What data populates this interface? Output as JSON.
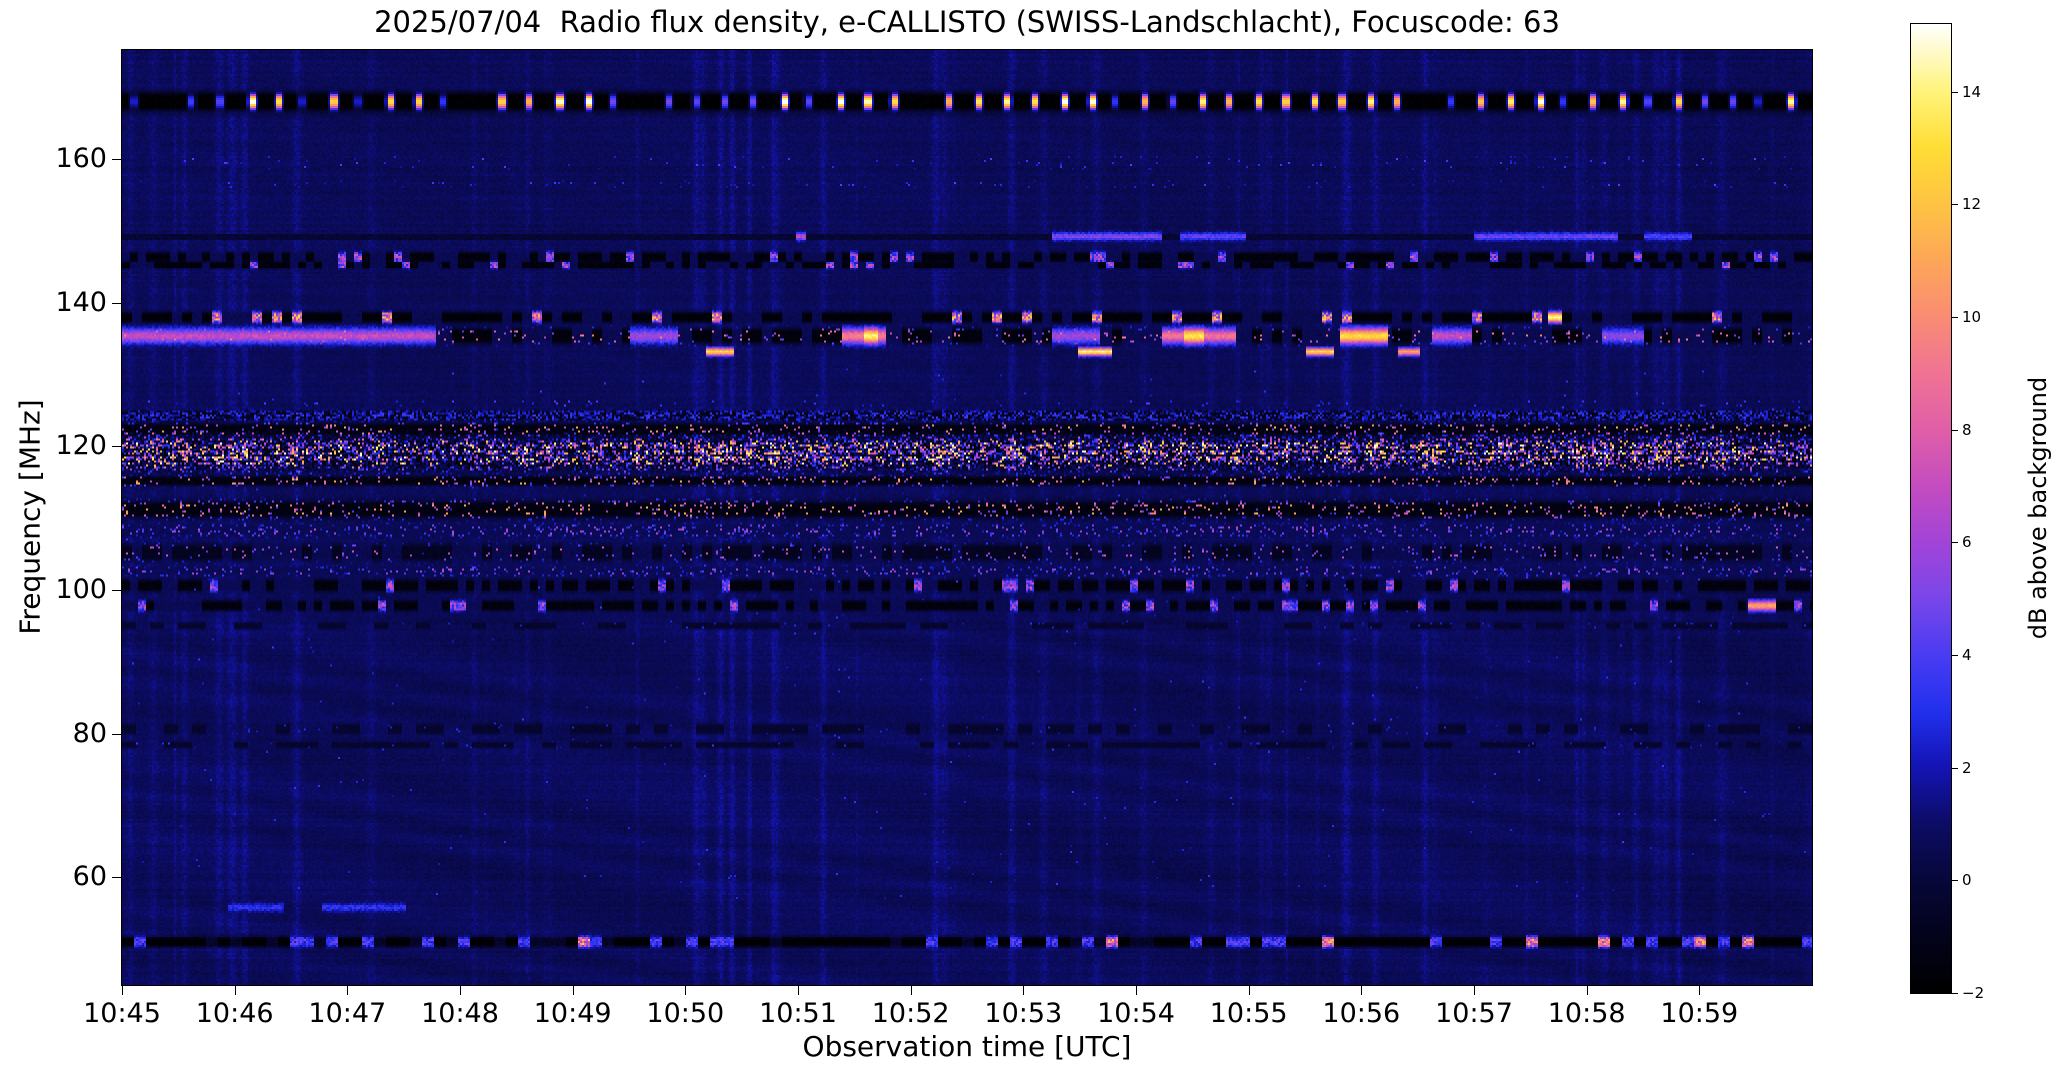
{
  "title": "2025/07/04  Radio flux density, e-CALLISTO (SWISS-Landschlacht), Focuscode: 63",
  "chart_data": {
    "type": "heatmap",
    "title": "2025/07/04  Radio flux density, e-CALLISTO (SWISS-Landschlacht), Focuscode: 63",
    "xlabel": "Observation time [UTC]",
    "ylabel": "Frequency [MHz]",
    "x_tick_labels": [
      "10:45",
      "10:46",
      "10:47",
      "10:48",
      "10:49",
      "10:50",
      "10:51",
      "10:52",
      "10:53",
      "10:54",
      "10:55",
      "10:56",
      "10:57",
      "10:58",
      "10:59"
    ],
    "x_minutes_span": 15,
    "y_ticks": [
      160,
      140,
      120,
      100,
      80,
      60
    ],
    "freq_range": [
      45,
      175.2
    ],
    "value_range": [
      -2,
      15.2
    ],
    "grid": false,
    "colorbar": {
      "label": "dB above background",
      "ticks": [
        14,
        12,
        10,
        8,
        6,
        4,
        2,
        0,
        -2
      ],
      "tick_labels": [
        "14",
        "12",
        "10",
        "8",
        "6",
        "4",
        "2",
        "0",
        "−2"
      ]
    },
    "colormap": [
      [
        -2,
        "#000000"
      ],
      [
        -1,
        "#03031c"
      ],
      [
        0,
        "#07073a"
      ],
      [
        1,
        "#0c0c66"
      ],
      [
        2,
        "#1414b4"
      ],
      [
        3,
        "#2230ee"
      ],
      [
        4,
        "#4a3cf2"
      ],
      [
        5,
        "#7a46ea"
      ],
      [
        6,
        "#a244d8"
      ],
      [
        7,
        "#c44cc0"
      ],
      [
        8,
        "#e05fa8"
      ],
      [
        9,
        "#f07394"
      ],
      [
        10,
        "#f98c74"
      ],
      [
        11,
        "#fda658"
      ],
      [
        12,
        "#fec343"
      ],
      [
        13,
        "#ffdd35"
      ],
      [
        14,
        "#fff37a"
      ],
      [
        15.2,
        "#ffffff"
      ]
    ],
    "background_level_db": 0.6,
    "rfi_bands": [
      {
        "freq": 168.0,
        "width": 3.0,
        "type": "bright_dashed"
      },
      {
        "freq": 159.5,
        "width": 2.0,
        "type": "faint_speckle"
      },
      {
        "freq": 156.5,
        "width": 1.0,
        "type": "faint_speckle"
      },
      {
        "freq": 149.2,
        "width": 1.3,
        "type": "intermittent_streak",
        "segments": [
          [
            0.398,
            0.404,
            6.5
          ],
          [
            0.55,
            0.615,
            5.2
          ],
          [
            0.625,
            0.665,
            4.4
          ],
          [
            0.8,
            0.885,
            4.6
          ],
          [
            0.9,
            0.928,
            4.0
          ]
        ]
      },
      {
        "freq": 146.3,
        "width": 1.6,
        "type": "dark_dotted"
      },
      {
        "freq": 145.2,
        "width": 1.0,
        "type": "dark_dotted"
      },
      {
        "freq": 138.0,
        "width": 1.6,
        "type": "dark_dashed_bright",
        "segments": [
          [
            0.843,
            0.852,
            14.5
          ]
        ]
      },
      {
        "freq": 135.4,
        "width": 2.4,
        "type": "pink_streaks",
        "segments": [
          [
            0.0,
            0.185,
            7.0
          ],
          [
            0.3,
            0.328,
            6.0
          ],
          [
            0.425,
            0.452,
            9.5
          ],
          [
            0.438,
            0.447,
            14.0
          ],
          [
            0.55,
            0.578,
            6.0
          ],
          [
            0.615,
            0.658,
            9.0
          ],
          [
            0.628,
            0.64,
            13.5
          ],
          [
            0.72,
            0.748,
            13.0
          ],
          [
            0.775,
            0.798,
            7.0
          ],
          [
            0.875,
            0.9,
            5.5
          ]
        ]
      },
      {
        "freq": 133.2,
        "width": 1.2,
        "type": "sparse_streaks",
        "segments": [
          [
            0.345,
            0.362,
            13.0
          ],
          [
            0.565,
            0.585,
            14.0
          ],
          [
            0.7,
            0.716,
            13.0
          ],
          [
            0.755,
            0.767,
            11.0
          ]
        ]
      },
      {
        "freq": 126.0,
        "width": 1.0,
        "type": "faint_speckle"
      },
      {
        "freq": 124.3,
        "width": 1.6,
        "type": "blue_speckle"
      },
      {
        "freq": 122.3,
        "width": 2.0,
        "type": "dark_speckle"
      },
      {
        "freq": 119.0,
        "width": 5.2,
        "type": "dense_speckle"
      },
      {
        "freq": 115.2,
        "width": 1.4,
        "type": "dark_speckle"
      },
      {
        "freq": 111.2,
        "width": 2.6,
        "type": "dark_speckle"
      },
      {
        "freq": 108.3,
        "width": 2.0,
        "type": "sparse_speckle"
      },
      {
        "freq": 105.2,
        "width": 2.6,
        "type": "dark_sparse"
      },
      {
        "freq": 102.6,
        "width": 1.4,
        "type": "sparse_speckle"
      },
      {
        "freq": 100.6,
        "width": 1.8,
        "type": "dark_dotted"
      },
      {
        "freq": 97.8,
        "width": 1.6,
        "type": "dark_dotted",
        "segments": [
          [
            0.962,
            0.978,
            11.0
          ]
        ]
      },
      {
        "freq": 95.0,
        "width": 1.0,
        "type": "faint_dark"
      },
      {
        "freq": 80.6,
        "width": 1.6,
        "type": "faint_dark"
      },
      {
        "freq": 78.4,
        "width": 1.0,
        "type": "faint_dark"
      },
      {
        "freq": 55.8,
        "width": 1.4,
        "type": "left_blue_dashes",
        "segments": [
          [
            0.062,
            0.095,
            3.2
          ],
          [
            0.118,
            0.168,
            3.2
          ]
        ]
      },
      {
        "freq": 51.0,
        "width": 1.6,
        "type": "dashed_dark_bright"
      }
    ]
  }
}
